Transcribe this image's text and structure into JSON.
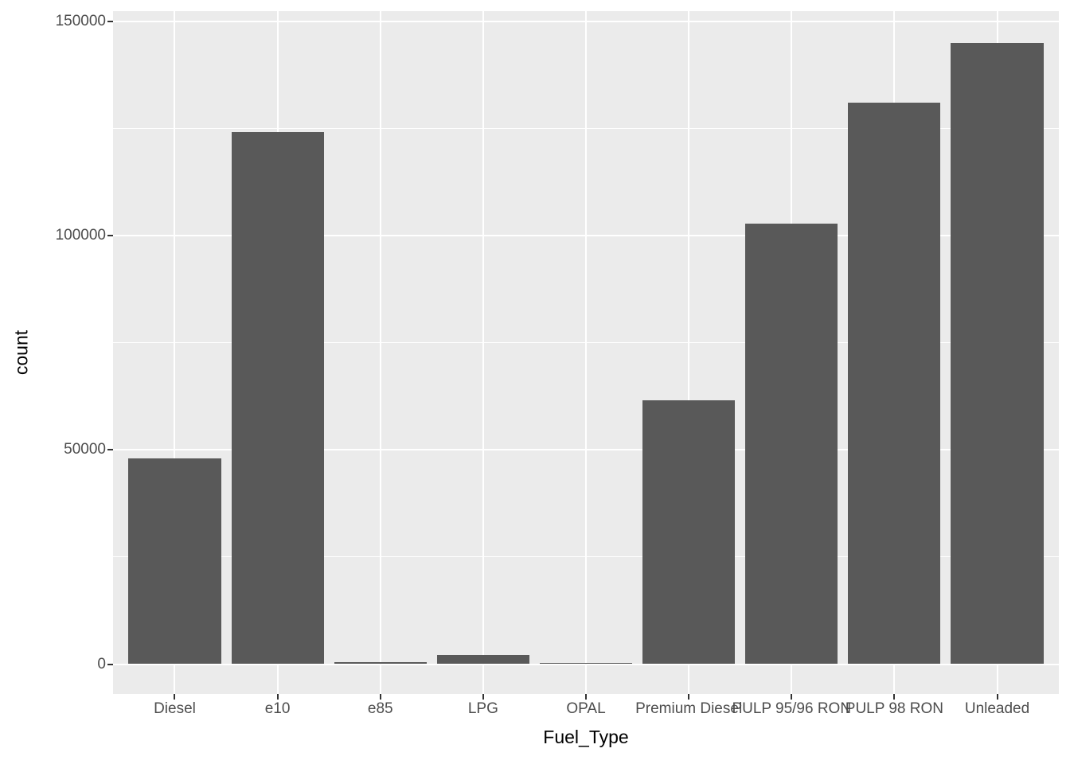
{
  "chart_data": {
    "type": "bar",
    "title": "",
    "xlabel": "Fuel_Type",
    "ylabel": "count",
    "categories": [
      "Diesel",
      "e10",
      "e85",
      "LPG",
      "OPAL",
      "Premium Diesel",
      "PULP 95/96 RON",
      "PULP 98 RON",
      "Unleaded"
    ],
    "values": [
      48000,
      124200,
      550,
      2100,
      300,
      61500,
      102800,
      131000,
      145000
    ],
    "ylim": [
      0,
      150000
    ],
    "yticks": [
      0,
      50000,
      100000,
      150000
    ],
    "ytick_labels": [
      "0",
      "50000",
      "100000",
      "150000"
    ],
    "minor_yticks": [
      25000,
      75000,
      125000
    ],
    "grid": "major-and-minor-horizontal, major-vertical-at-category-centers",
    "legend": false,
    "bar_width_fraction": 0.9,
    "style": "ggplot2-grey",
    "colors": {
      "bar_fill": "#595959",
      "panel_background": "#EBEBEB",
      "grid_major": "#FFFFFF",
      "grid_minor": "#FFFFFF",
      "axis_text": "#4D4D4D",
      "axis_title": "#000000",
      "tick_mark": "#333333",
      "page_background": "#FFFFFF"
    }
  }
}
